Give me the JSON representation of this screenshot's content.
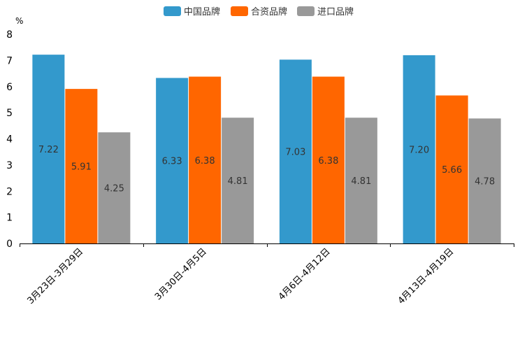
{
  "chart_data": {
    "type": "bar",
    "title": "",
    "ylabel": "%",
    "xlabel": "",
    "ylim": [
      0,
      8
    ],
    "yticks": [
      0,
      1,
      2,
      3,
      4,
      5,
      6,
      7,
      8
    ],
    "categories": [
      "3月23日-3月29日",
      "3月30日-4月5日",
      "4月6日-4月12日",
      "4月13日-4月19日"
    ],
    "series": [
      {
        "name": "中国品牌",
        "color": "#3399cc",
        "values": [
          7.22,
          6.33,
          7.03,
          7.2
        ],
        "labels": [
          "7.22",
          "6.33",
          "7.03",
          "7.20"
        ]
      },
      {
        "name": "合资品牌",
        "color": "#ff6600",
        "values": [
          5.91,
          6.38,
          6.38,
          5.66
        ],
        "labels": [
          "5.91",
          "6.38",
          "6.38",
          "5.66"
        ]
      },
      {
        "name": "进口品牌",
        "color": "#999999",
        "values": [
          4.25,
          4.81,
          4.81,
          4.78
        ],
        "labels": [
          "4.25",
          "4.81",
          "4.81",
          "4.78"
        ]
      }
    ],
    "legend_position": "top-center",
    "grid": false
  }
}
